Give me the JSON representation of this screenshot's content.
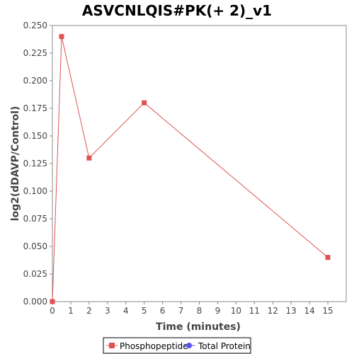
{
  "chart_data": {
    "type": "line",
    "title": "ASVCNLQIS#PK(+ 2)_v1",
    "xlabel": "Time (minutes)",
    "ylabel": "log2(dDAVP/Control)",
    "xlim": [
      0,
      16
    ],
    "ylim": [
      0,
      0.25
    ],
    "x_ticks": [
      0,
      1,
      2,
      3,
      4,
      5,
      6,
      7,
      8,
      9,
      10,
      11,
      12,
      13,
      14,
      15
    ],
    "y_ticks": [
      "0.000",
      "0.025",
      "0.050",
      "0.075",
      "0.100",
      "0.125",
      "0.150",
      "0.175",
      "0.200",
      "0.225",
      "0.250"
    ],
    "grid": false,
    "legend_position": "bottom",
    "series": [
      {
        "name": "Phosphopeptide",
        "color": "#e05252",
        "marker": "square",
        "x": [
          0,
          0.5,
          2,
          5,
          15
        ],
        "y": [
          0.0,
          0.24,
          0.13,
          0.18,
          0.04
        ]
      },
      {
        "name": "Total Protein",
        "color": "#5555ee",
        "marker": "circle",
        "x": [],
        "y": []
      }
    ]
  }
}
